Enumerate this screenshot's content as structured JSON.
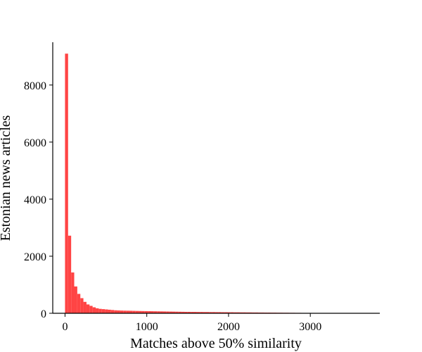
{
  "chart_data": {
    "type": "bar",
    "xlabel": "Matches above 50% similarity",
    "ylabel": "Estonian news articles",
    "xlim": [
      -150,
      3850
    ],
    "ylim": [
      0,
      9500
    ],
    "xticks": [
      0,
      1000,
      2000,
      3000
    ],
    "yticks": [
      0,
      2000,
      4000,
      6000,
      8000
    ],
    "bar_color": "#ff4444",
    "grid": false,
    "bin_width": 37.5,
    "bin_start": 0,
    "values": [
      9100,
      2720,
      1430,
      940,
      680,
      530,
      400,
      310,
      260,
      210,
      175,
      155,
      145,
      135,
      125,
      115,
      105,
      100,
      95,
      92,
      90,
      88,
      85,
      82,
      80,
      78,
      76,
      74,
      72,
      70,
      68,
      66,
      64,
      62,
      60,
      58,
      56,
      54,
      52,
      50,
      50,
      48,
      48,
      46,
      46,
      44,
      44,
      42,
      42,
      40,
      40,
      38,
      38,
      36,
      36,
      34,
      34,
      32,
      32,
      30,
      30,
      28,
      28,
      26,
      26,
      24,
      24,
      22,
      22,
      20,
      20,
      18,
      18,
      16,
      16,
      14,
      14,
      12,
      12,
      10
    ]
  }
}
